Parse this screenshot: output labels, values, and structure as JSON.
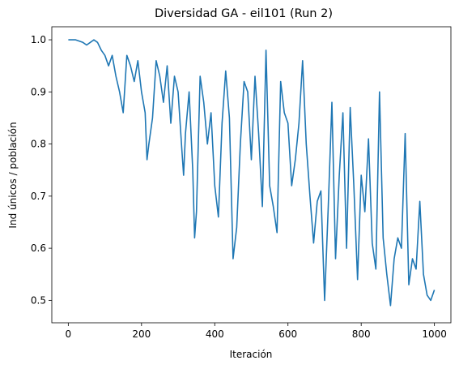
{
  "chart_data": {
    "type": "line",
    "title": "Diversidad GA - eil101 (Run 2)",
    "xlabel": "Iteración",
    "ylabel": "Ind únicos / población",
    "xlim": [
      -45,
      1045
    ],
    "ylim": [
      0.457,
      1.025
    ],
    "xticks": [
      0,
      200,
      400,
      600,
      800,
      1000
    ],
    "yticks": [
      0.5,
      0.6,
      0.7,
      0.8,
      0.9,
      1.0
    ],
    "xtick_labels": [
      "0",
      "200",
      "400",
      "600",
      "800",
      "1000"
    ],
    "ytick_labels": [
      "0.5",
      "0.6",
      "0.7",
      "0.8",
      "0.9",
      "1.0"
    ],
    "grid": false,
    "line_color": "#1f77b4",
    "series": [
      {
        "x": [
          0,
          20,
          40,
          50,
          60,
          70,
          80,
          90,
          100,
          110,
          120,
          130,
          140,
          150,
          160,
          170,
          180,
          190,
          200,
          210,
          215,
          220,
          230,
          240,
          250,
          260,
          270,
          280,
          290,
          300,
          310,
          315,
          320,
          330,
          340,
          345,
          350,
          360,
          370,
          380,
          390,
          400,
          410,
          420,
          430,
          440,
          450,
          460,
          470,
          480,
          490,
          500,
          510,
          520,
          530,
          540,
          550,
          560,
          570,
          580,
          590,
          600,
          610,
          620,
          630,
          640,
          650,
          660,
          670,
          680,
          690,
          700,
          710,
          720,
          730,
          740,
          750,
          760,
          770,
          780,
          790,
          800,
          810,
          820,
          830,
          840,
          850,
          860,
          870,
          880,
          890,
          900,
          910,
          920,
          930,
          940,
          950,
          960,
          970,
          980,
          990,
          1000
        ],
        "y": [
          1.0,
          1.0,
          0.995,
          0.99,
          0.995,
          1.0,
          0.995,
          0.98,
          0.97,
          0.95,
          0.97,
          0.93,
          0.9,
          0.86,
          0.97,
          0.95,
          0.92,
          0.96,
          0.9,
          0.86,
          0.77,
          0.8,
          0.85,
          0.96,
          0.93,
          0.88,
          0.95,
          0.84,
          0.93,
          0.9,
          0.79,
          0.74,
          0.82,
          0.9,
          0.75,
          0.62,
          0.67,
          0.93,
          0.88,
          0.8,
          0.86,
          0.72,
          0.66,
          0.84,
          0.94,
          0.85,
          0.58,
          0.64,
          0.8,
          0.92,
          0.9,
          0.77,
          0.93,
          0.82,
          0.68,
          0.98,
          0.72,
          0.68,
          0.63,
          0.92,
          0.86,
          0.84,
          0.72,
          0.77,
          0.84,
          0.96,
          0.8,
          0.7,
          0.61,
          0.69,
          0.71,
          0.5,
          0.68,
          0.88,
          0.58,
          0.74,
          0.86,
          0.6,
          0.87,
          0.72,
          0.54,
          0.74,
          0.67,
          0.81,
          0.61,
          0.56,
          0.9,
          0.62,
          0.55,
          0.49,
          0.58,
          0.62,
          0.6,
          0.82,
          0.53,
          0.58,
          0.56,
          0.69,
          0.55,
          0.51,
          0.5,
          0.52
        ]
      }
    ]
  }
}
